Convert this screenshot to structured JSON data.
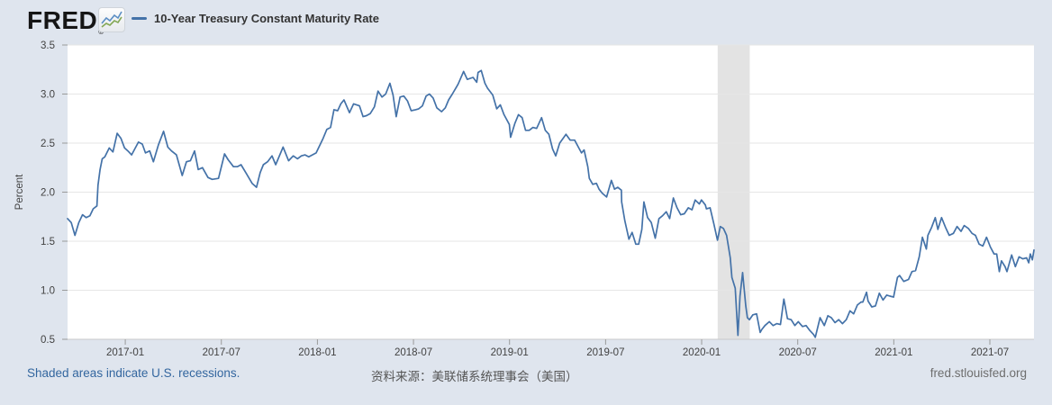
{
  "header": {
    "brand": "FRED",
    "brand_registered": "®",
    "legend": {
      "label": "10-Year Treasury Constant Maturity Rate"
    }
  },
  "footer": {
    "left_note": "Shaded areas indicate U.S. recessions.",
    "source": "资料来源：美联储系统理事会（美国）",
    "site": "fred.stlouisfed.org"
  },
  "colors": {
    "page_background": "#dfe5ee",
    "plot_background": "#ffffff",
    "gridline": "#e6e6e6",
    "axis_line": "#c9c9c9",
    "tick_mark": "#9a9a9a",
    "tick_text": "#424242",
    "recession_band": "#e3e3e3",
    "series_line": "#4472a8"
  },
  "chart_data": {
    "type": "line",
    "title": "10-Year Treasury Constant Maturity Rate",
    "ylabel": "Percent",
    "ylim": [
      0.5,
      3.5
    ],
    "ytick_step": 0.5,
    "yticks": [
      0.5,
      1.0,
      1.5,
      2.0,
      2.5,
      3.0,
      3.5
    ],
    "x_domain": [
      "2016-09-13",
      "2021-09-24"
    ],
    "xticks": [
      {
        "label": "2017-01",
        "date": "2017-01-01"
      },
      {
        "label": "2017-07",
        "date": "2017-07-01"
      },
      {
        "label": "2018-01",
        "date": "2018-01-01"
      },
      {
        "label": "2018-07",
        "date": "2018-07-01"
      },
      {
        "label": "2019-01",
        "date": "2019-01-01"
      },
      {
        "label": "2019-07",
        "date": "2019-07-01"
      },
      {
        "label": "2020-01",
        "date": "2020-01-01"
      },
      {
        "label": "2020-07",
        "date": "2020-07-01"
      },
      {
        "label": "2021-01",
        "date": "2021-01-01"
      },
      {
        "label": "2021-07",
        "date": "2021-07-01"
      }
    ],
    "grid": true,
    "legend_position": "top-left-header",
    "recession_bands": [
      {
        "start": "2020-02-01",
        "end": "2020-04-01"
      }
    ],
    "series": [
      {
        "name": "10-Year Treasury Constant Maturity Rate",
        "units": "Percent",
        "points": [
          [
            "2016-09-13",
            1.73
          ],
          [
            "2016-09-20",
            1.69
          ],
          [
            "2016-09-27",
            1.56
          ],
          [
            "2016-10-04",
            1.69
          ],
          [
            "2016-10-11",
            1.77
          ],
          [
            "2016-10-18",
            1.74
          ],
          [
            "2016-10-25",
            1.76
          ],
          [
            "2016-11-01",
            1.83
          ],
          [
            "2016-11-08",
            1.86
          ],
          [
            "2016-11-10",
            2.07
          ],
          [
            "2016-11-14",
            2.23
          ],
          [
            "2016-11-18",
            2.34
          ],
          [
            "2016-11-23",
            2.36
          ],
          [
            "2016-12-01",
            2.45
          ],
          [
            "2016-12-08",
            2.41
          ],
          [
            "2016-12-16",
            2.6
          ],
          [
            "2016-12-23",
            2.55
          ],
          [
            "2016-12-30",
            2.45
          ],
          [
            "2017-01-06",
            2.42
          ],
          [
            "2017-01-13",
            2.38
          ],
          [
            "2017-01-26",
            2.51
          ],
          [
            "2017-02-03",
            2.49
          ],
          [
            "2017-02-09",
            2.4
          ],
          [
            "2017-02-17",
            2.42
          ],
          [
            "2017-02-24",
            2.31
          ],
          [
            "2017-03-03",
            2.48
          ],
          [
            "2017-03-13",
            2.62
          ],
          [
            "2017-03-21",
            2.46
          ],
          [
            "2017-03-28",
            2.42
          ],
          [
            "2017-04-07",
            2.38
          ],
          [
            "2017-04-18",
            2.17
          ],
          [
            "2017-04-26",
            2.31
          ],
          [
            "2017-05-03",
            2.32
          ],
          [
            "2017-05-11",
            2.42
          ],
          [
            "2017-05-18",
            2.23
          ],
          [
            "2017-05-26",
            2.25
          ],
          [
            "2017-06-06",
            2.15
          ],
          [
            "2017-06-14",
            2.13
          ],
          [
            "2017-06-26",
            2.14
          ],
          [
            "2017-07-07",
            2.39
          ],
          [
            "2017-07-14",
            2.33
          ],
          [
            "2017-07-24",
            2.26
          ],
          [
            "2017-08-01",
            2.26
          ],
          [
            "2017-08-08",
            2.28
          ],
          [
            "2017-08-18",
            2.19
          ],
          [
            "2017-08-29",
            2.09
          ],
          [
            "2017-09-07",
            2.05
          ],
          [
            "2017-09-14",
            2.2
          ],
          [
            "2017-09-20",
            2.28
          ],
          [
            "2017-09-28",
            2.31
          ],
          [
            "2017-10-06",
            2.37
          ],
          [
            "2017-10-13",
            2.28
          ],
          [
            "2017-10-27",
            2.46
          ],
          [
            "2017-11-07",
            2.32
          ],
          [
            "2017-11-16",
            2.37
          ],
          [
            "2017-11-24",
            2.34
          ],
          [
            "2017-12-01",
            2.37
          ],
          [
            "2017-12-08",
            2.38
          ],
          [
            "2017-12-15",
            2.36
          ],
          [
            "2017-12-29",
            2.4
          ],
          [
            "2018-01-12",
            2.55
          ],
          [
            "2018-01-19",
            2.64
          ],
          [
            "2018-01-26",
            2.66
          ],
          [
            "2018-02-02",
            2.84
          ],
          [
            "2018-02-09",
            2.83
          ],
          [
            "2018-02-15",
            2.9
          ],
          [
            "2018-02-21",
            2.94
          ],
          [
            "2018-03-01",
            2.81
          ],
          [
            "2018-03-09",
            2.9
          ],
          [
            "2018-03-20",
            2.88
          ],
          [
            "2018-03-27",
            2.77
          ],
          [
            "2018-04-03",
            2.78
          ],
          [
            "2018-04-10",
            2.8
          ],
          [
            "2018-04-18",
            2.87
          ],
          [
            "2018-04-25",
            3.03
          ],
          [
            "2018-05-02",
            2.97
          ],
          [
            "2018-05-09",
            3.0
          ],
          [
            "2018-05-17",
            3.11
          ],
          [
            "2018-05-23",
            2.99
          ],
          [
            "2018-05-29",
            2.77
          ],
          [
            "2018-06-06",
            2.97
          ],
          [
            "2018-06-13",
            2.98
          ],
          [
            "2018-06-20",
            2.93
          ],
          [
            "2018-06-27",
            2.83
          ],
          [
            "2018-07-05",
            2.84
          ],
          [
            "2018-07-11",
            2.85
          ],
          [
            "2018-07-18",
            2.88
          ],
          [
            "2018-07-25",
            2.98
          ],
          [
            "2018-08-01",
            3.0
          ],
          [
            "2018-08-08",
            2.96
          ],
          [
            "2018-08-15",
            2.86
          ],
          [
            "2018-08-24",
            2.82
          ],
          [
            "2018-08-31",
            2.86
          ],
          [
            "2018-09-07",
            2.94
          ],
          [
            "2018-09-14",
            3.0
          ],
          [
            "2018-09-25",
            3.1
          ],
          [
            "2018-10-05",
            3.23
          ],
          [
            "2018-10-12",
            3.15
          ],
          [
            "2018-10-23",
            3.17
          ],
          [
            "2018-10-30",
            3.12
          ],
          [
            "2018-11-02",
            3.22
          ],
          [
            "2018-11-08",
            3.24
          ],
          [
            "2018-11-15",
            3.11
          ],
          [
            "2018-11-20",
            3.06
          ],
          [
            "2018-11-30",
            2.99
          ],
          [
            "2018-12-07",
            2.85
          ],
          [
            "2018-12-14",
            2.89
          ],
          [
            "2018-12-21",
            2.79
          ],
          [
            "2018-12-31",
            2.69
          ],
          [
            "2019-01-03",
            2.56
          ],
          [
            "2019-01-11",
            2.7
          ],
          [
            "2019-01-18",
            2.79
          ],
          [
            "2019-01-25",
            2.76
          ],
          [
            "2019-02-01",
            2.63
          ],
          [
            "2019-02-08",
            2.63
          ],
          [
            "2019-02-15",
            2.66
          ],
          [
            "2019-02-22",
            2.65
          ],
          [
            "2019-03-01",
            2.76
          ],
          [
            "2019-03-08",
            2.63
          ],
          [
            "2019-03-15",
            2.59
          ],
          [
            "2019-03-22",
            2.44
          ],
          [
            "2019-03-28",
            2.37
          ],
          [
            "2019-04-05",
            2.5
          ],
          [
            "2019-04-17",
            2.59
          ],
          [
            "2019-04-25",
            2.53
          ],
          [
            "2019-05-03",
            2.53
          ],
          [
            "2019-05-10",
            2.46
          ],
          [
            "2019-05-16",
            2.4
          ],
          [
            "2019-05-21",
            2.43
          ],
          [
            "2019-05-28",
            2.26
          ],
          [
            "2019-05-31",
            2.14
          ],
          [
            "2019-06-07",
            2.08
          ],
          [
            "2019-06-14",
            2.09
          ],
          [
            "2019-06-19",
            2.03
          ],
          [
            "2019-06-25",
            1.99
          ],
          [
            "2019-07-03",
            1.95
          ],
          [
            "2019-07-12",
            2.12
          ],
          [
            "2019-07-18",
            2.03
          ],
          [
            "2019-07-24",
            2.05
          ],
          [
            "2019-07-31",
            2.02
          ],
          [
            "2019-08-01",
            1.9
          ],
          [
            "2019-08-07",
            1.71
          ],
          [
            "2019-08-15",
            1.52
          ],
          [
            "2019-08-21",
            1.59
          ],
          [
            "2019-08-28",
            1.47
          ],
          [
            "2019-09-03",
            1.47
          ],
          [
            "2019-09-09",
            1.62
          ],
          [
            "2019-09-13",
            1.9
          ],
          [
            "2019-09-20",
            1.74
          ],
          [
            "2019-09-27",
            1.69
          ],
          [
            "2019-10-04",
            1.53
          ],
          [
            "2019-10-11",
            1.73
          ],
          [
            "2019-10-18",
            1.76
          ],
          [
            "2019-10-25",
            1.8
          ],
          [
            "2019-11-01",
            1.73
          ],
          [
            "2019-11-08",
            1.94
          ],
          [
            "2019-11-15",
            1.84
          ],
          [
            "2019-11-22",
            1.77
          ],
          [
            "2019-11-29",
            1.78
          ],
          [
            "2019-12-06",
            1.84
          ],
          [
            "2019-12-13",
            1.82
          ],
          [
            "2019-12-19",
            1.92
          ],
          [
            "2019-12-27",
            1.88
          ],
          [
            "2019-12-31",
            1.92
          ],
          [
            "2020-01-08",
            1.87
          ],
          [
            "2020-01-10",
            1.83
          ],
          [
            "2020-01-17",
            1.84
          ],
          [
            "2020-01-24",
            1.68
          ],
          [
            "2020-01-31",
            1.51
          ],
          [
            "2020-02-06",
            1.65
          ],
          [
            "2020-02-12",
            1.63
          ],
          [
            "2020-02-18",
            1.56
          ],
          [
            "2020-02-21",
            1.46
          ],
          [
            "2020-02-25",
            1.33
          ],
          [
            "2020-02-28",
            1.13
          ],
          [
            "2020-03-04",
            1.02
          ],
          [
            "2020-03-09",
            0.54
          ],
          [
            "2020-03-13",
            0.94
          ],
          [
            "2020-03-18",
            1.18
          ],
          [
            "2020-03-24",
            0.84
          ],
          [
            "2020-03-27",
            0.72
          ],
          [
            "2020-03-31",
            0.7
          ],
          [
            "2020-04-07",
            0.75
          ],
          [
            "2020-04-14",
            0.76
          ],
          [
            "2020-04-21",
            0.57
          ],
          [
            "2020-04-24",
            0.6
          ],
          [
            "2020-04-30",
            0.64
          ],
          [
            "2020-05-08",
            0.68
          ],
          [
            "2020-05-15",
            0.64
          ],
          [
            "2020-05-22",
            0.66
          ],
          [
            "2020-05-29",
            0.65
          ],
          [
            "2020-06-05",
            0.91
          ],
          [
            "2020-06-12",
            0.71
          ],
          [
            "2020-06-19",
            0.7
          ],
          [
            "2020-06-26",
            0.64
          ],
          [
            "2020-07-02",
            0.68
          ],
          [
            "2020-07-10",
            0.63
          ],
          [
            "2020-07-17",
            0.64
          ],
          [
            "2020-07-24",
            0.59
          ],
          [
            "2020-07-31",
            0.55
          ],
          [
            "2020-08-04",
            0.52
          ],
          [
            "2020-08-13",
            0.72
          ],
          [
            "2020-08-21",
            0.64
          ],
          [
            "2020-08-28",
            0.74
          ],
          [
            "2020-09-04",
            0.72
          ],
          [
            "2020-09-11",
            0.67
          ],
          [
            "2020-09-18",
            0.7
          ],
          [
            "2020-09-25",
            0.66
          ],
          [
            "2020-10-02",
            0.7
          ],
          [
            "2020-10-09",
            0.79
          ],
          [
            "2020-10-16",
            0.76
          ],
          [
            "2020-10-23",
            0.85
          ],
          [
            "2020-10-30",
            0.88
          ],
          [
            "2020-11-03",
            0.88
          ],
          [
            "2020-11-10",
            0.98
          ],
          [
            "2020-11-13",
            0.89
          ],
          [
            "2020-11-20",
            0.83
          ],
          [
            "2020-11-27",
            0.84
          ],
          [
            "2020-12-04",
            0.97
          ],
          [
            "2020-12-11",
            0.9
          ],
          [
            "2020-12-18",
            0.95
          ],
          [
            "2020-12-24",
            0.94
          ],
          [
            "2020-12-31",
            0.93
          ],
          [
            "2021-01-08",
            1.13
          ],
          [
            "2021-01-12",
            1.15
          ],
          [
            "2021-01-20",
            1.09
          ],
          [
            "2021-01-29",
            1.11
          ],
          [
            "2021-02-05",
            1.19
          ],
          [
            "2021-02-12",
            1.2
          ],
          [
            "2021-02-19",
            1.34
          ],
          [
            "2021-02-25",
            1.54
          ],
          [
            "2021-03-02",
            1.42
          ],
          [
            "2021-03-05",
            1.56
          ],
          [
            "2021-03-12",
            1.64
          ],
          [
            "2021-03-19",
            1.74
          ],
          [
            "2021-03-24",
            1.62
          ],
          [
            "2021-03-31",
            1.74
          ],
          [
            "2021-04-08",
            1.64
          ],
          [
            "2021-04-15",
            1.56
          ],
          [
            "2021-04-23",
            1.58
          ],
          [
            "2021-04-30",
            1.65
          ],
          [
            "2021-05-07",
            1.6
          ],
          [
            "2021-05-13",
            1.66
          ],
          [
            "2021-05-21",
            1.63
          ],
          [
            "2021-05-28",
            1.58
          ],
          [
            "2021-06-04",
            1.56
          ],
          [
            "2021-06-11",
            1.47
          ],
          [
            "2021-06-18",
            1.45
          ],
          [
            "2021-06-25",
            1.54
          ],
          [
            "2021-07-02",
            1.44
          ],
          [
            "2021-07-09",
            1.37
          ],
          [
            "2021-07-14",
            1.37
          ],
          [
            "2021-07-19",
            1.19
          ],
          [
            "2021-07-23",
            1.3
          ],
          [
            "2021-07-30",
            1.24
          ],
          [
            "2021-08-03",
            1.19
          ],
          [
            "2021-08-12",
            1.36
          ],
          [
            "2021-08-19",
            1.24
          ],
          [
            "2021-08-26",
            1.34
          ],
          [
            "2021-09-03",
            1.32
          ],
          [
            "2021-09-10",
            1.33
          ],
          [
            "2021-09-14",
            1.28
          ],
          [
            "2021-09-17",
            1.37
          ],
          [
            "2021-09-21",
            1.31
          ],
          [
            "2021-09-24",
            1.41
          ]
        ]
      }
    ]
  }
}
